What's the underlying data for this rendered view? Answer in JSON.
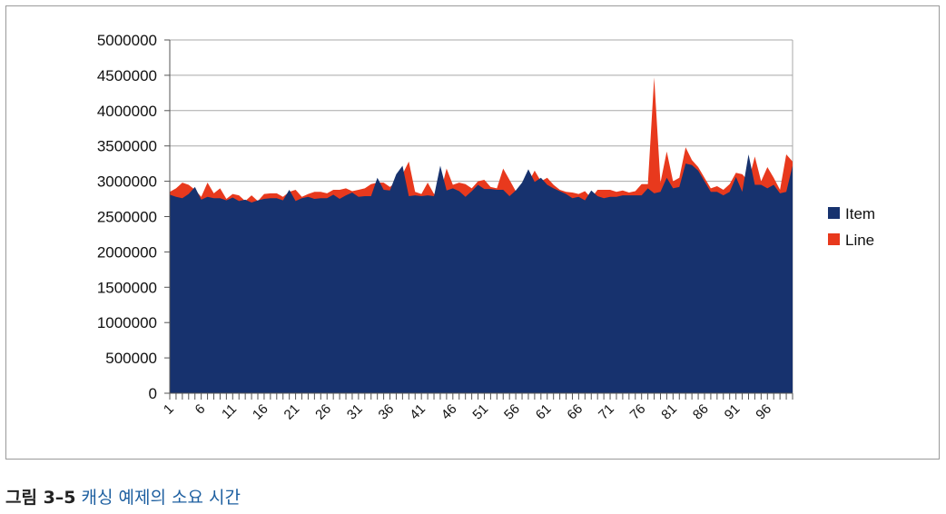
{
  "caption": {
    "label": "그림 3–5",
    "text": "캐싱 예제의 소요 시간"
  },
  "colors": {
    "item": "#17326e",
    "line": "#e8391d",
    "grid": "#a8a8a8",
    "axis": "#555555"
  },
  "chart_data": {
    "type": "area",
    "stacked": false,
    "grid": true,
    "legend_position": "right",
    "ylim": [
      0,
      5000000
    ],
    "y_ticks": [
      "0",
      "500000",
      "1000000",
      "1500000",
      "2000000",
      "2500000",
      "3000000",
      "3500000",
      "4000000",
      "4500000",
      "5000000"
    ],
    "x": [
      1,
      2,
      3,
      4,
      5,
      6,
      7,
      8,
      9,
      10,
      11,
      12,
      13,
      14,
      15,
      16,
      17,
      18,
      19,
      20,
      21,
      22,
      23,
      24,
      25,
      26,
      27,
      28,
      29,
      30,
      31,
      32,
      33,
      34,
      35,
      36,
      37,
      38,
      39,
      40,
      41,
      42,
      43,
      44,
      45,
      46,
      47,
      48,
      49,
      50,
      51,
      52,
      53,
      54,
      55,
      56,
      57,
      58,
      59,
      60,
      61,
      62,
      63,
      64,
      65,
      66,
      67,
      68,
      69,
      70,
      71,
      72,
      73,
      74,
      75,
      76,
      77,
      78,
      79,
      80,
      81,
      82,
      83,
      84,
      85,
      86,
      87,
      88,
      89,
      90,
      91,
      92,
      93,
      94,
      95,
      96,
      97,
      98,
      99,
      100
    ],
    "x_tick_labels": [
      "1",
      "6",
      "11",
      "16",
      "21",
      "26",
      "31",
      "36",
      "41",
      "46",
      "51",
      "56",
      "61",
      "66",
      "71",
      "76",
      "81",
      "86",
      "91",
      "96"
    ],
    "series": [
      {
        "name": "Line",
        "values": [
          2850000,
          2900000,
          2980000,
          2950000,
          2880000,
          2780000,
          2980000,
          2830000,
          2900000,
          2750000,
          2820000,
          2800000,
          2720000,
          2800000,
          2720000,
          2820000,
          2830000,
          2830000,
          2780000,
          2850000,
          2880000,
          2780000,
          2820000,
          2850000,
          2850000,
          2830000,
          2880000,
          2880000,
          2900000,
          2860000,
          2880000,
          2900000,
          2960000,
          2980000,
          2980000,
          2920000,
          2990000,
          3100000,
          3280000,
          2850000,
          2820000,
          2980000,
          2820000,
          2830000,
          3180000,
          2950000,
          2980000,
          2960000,
          2900000,
          3000000,
          3020000,
          2920000,
          2900000,
          3180000,
          3020000,
          2860000,
          2950000,
          2980000,
          3150000,
          3000000,
          3050000,
          2950000,
          2880000,
          2850000,
          2840000,
          2820000,
          2860000,
          2760000,
          2880000,
          2880000,
          2880000,
          2850000,
          2870000,
          2840000,
          2860000,
          2960000,
          2960000,
          4470000,
          2980000,
          3420000,
          3000000,
          3050000,
          3480000,
          3300000,
          3200000,
          3050000,
          2900000,
          2930000,
          2880000,
          2960000,
          3120000,
          3100000,
          3000000,
          3350000,
          3000000,
          3200000,
          3050000,
          2880000,
          3380000,
          3280000
        ]
      },
      {
        "name": "Item",
        "values": [
          2810000,
          2780000,
          2760000,
          2820000,
          2920000,
          2740000,
          2780000,
          2760000,
          2760000,
          2730000,
          2770000,
          2720000,
          2740000,
          2700000,
          2730000,
          2750000,
          2760000,
          2760000,
          2730000,
          2880000,
          2720000,
          2760000,
          2780000,
          2750000,
          2760000,
          2760000,
          2810000,
          2750000,
          2800000,
          2840000,
          2780000,
          2790000,
          2790000,
          3050000,
          2880000,
          2870000,
          3100000,
          3220000,
          2790000,
          2800000,
          2790000,
          2800000,
          2790000,
          3220000,
          2870000,
          2900000,
          2860000,
          2780000,
          2860000,
          2950000,
          2890000,
          2890000,
          2880000,
          2880000,
          2790000,
          2870000,
          2980000,
          3170000,
          2990000,
          3050000,
          2950000,
          2900000,
          2860000,
          2820000,
          2760000,
          2780000,
          2730000,
          2870000,
          2790000,
          2760000,
          2780000,
          2780000,
          2800000,
          2800000,
          2800000,
          2800000,
          2900000,
          2830000,
          2850000,
          3050000,
          2900000,
          2920000,
          3250000,
          3230000,
          3150000,
          3000000,
          2850000,
          2850000,
          2800000,
          2850000,
          3060000,
          2850000,
          3380000,
          2950000,
          2950000,
          2900000,
          2950000,
          2830000,
          2850000,
          3220000
        ]
      }
    ]
  }
}
